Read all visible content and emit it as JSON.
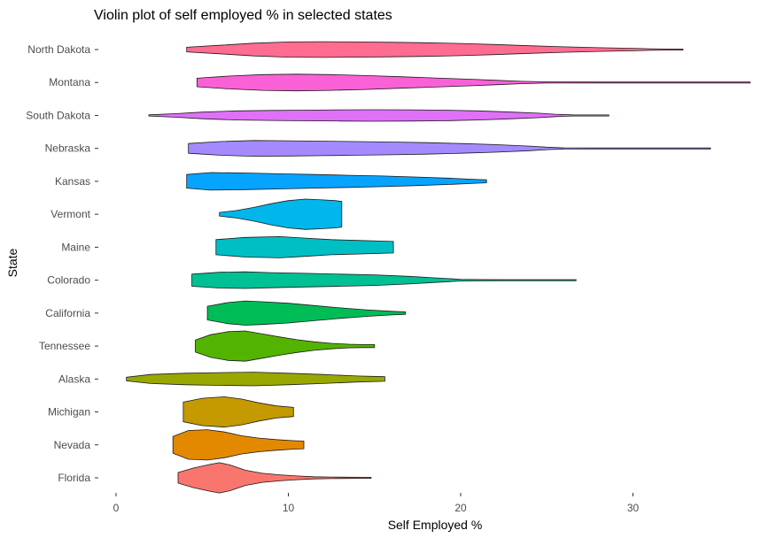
{
  "chart_data": {
    "type": "violin",
    "title": "Violin plot of self employed % in selected states",
    "xlabel": "Self Employed %",
    "ylabel": "State",
    "xlim": [
      -1,
      37
    ],
    "xticks": [
      0,
      10,
      20,
      30
    ],
    "grid": false,
    "legend": "none",
    "categories": [
      "Florida",
      "Nevada",
      "Michigan",
      "Alaska",
      "Tennessee",
      "California",
      "Colorado",
      "Maine",
      "Vermont",
      "Kansas",
      "Nebraska",
      "South Dakota",
      "Montana",
      "North Dakota"
    ],
    "series": [
      {
        "category": "Florida",
        "color": "#F8766D",
        "min": 3.6,
        "max": 14.8,
        "density": [
          [
            3.6,
            0.35
          ],
          [
            4.5,
            0.65
          ],
          [
            5.5,
            0.9
          ],
          [
            6.0,
            1.0
          ],
          [
            6.6,
            0.85
          ],
          [
            7.5,
            0.5
          ],
          [
            8.5,
            0.3
          ],
          [
            9.5,
            0.2
          ],
          [
            10.5,
            0.12
          ],
          [
            11.5,
            0.07
          ],
          [
            12.5,
            0.05
          ],
          [
            13.5,
            0.04
          ],
          [
            14.5,
            0.03
          ],
          [
            14.8,
            0.03
          ]
        ]
      },
      {
        "category": "Nevada",
        "color": "#E38900",
        "min": 3.3,
        "max": 10.9,
        "density": [
          [
            3.3,
            0.55
          ],
          [
            4.2,
            0.95
          ],
          [
            5.3,
            1.0
          ],
          [
            6.3,
            0.85
          ],
          [
            7.3,
            0.6
          ],
          [
            8.3,
            0.45
          ],
          [
            9.3,
            0.35
          ],
          [
            10.3,
            0.28
          ],
          [
            10.9,
            0.25
          ]
        ]
      },
      {
        "category": "Michigan",
        "color": "#C49A00",
        "min": 3.9,
        "max": 10.3,
        "density": [
          [
            3.9,
            0.65
          ],
          [
            5.0,
            0.9
          ],
          [
            6.3,
            1.0
          ],
          [
            7.3,
            0.85
          ],
          [
            8.3,
            0.6
          ],
          [
            9.3,
            0.4
          ],
          [
            10.3,
            0.3
          ]
        ]
      },
      {
        "category": "Alaska",
        "color": "#99A800",
        "min": 0.6,
        "max": 15.6,
        "density": [
          [
            0.6,
            0.12
          ],
          [
            2.0,
            0.3
          ],
          [
            4.0,
            0.38
          ],
          [
            6.0,
            0.42
          ],
          [
            8.0,
            0.45
          ],
          [
            10.0,
            0.38
          ],
          [
            12.0,
            0.3
          ],
          [
            14.0,
            0.2
          ],
          [
            15.6,
            0.15
          ]
        ]
      },
      {
        "category": "Tennessee",
        "color": "#53B400",
        "min": 4.6,
        "max": 15.0,
        "density": [
          [
            4.6,
            0.4
          ],
          [
            5.5,
            0.75
          ],
          [
            6.5,
            0.95
          ],
          [
            7.5,
            1.0
          ],
          [
            8.5,
            0.8
          ],
          [
            9.5,
            0.6
          ],
          [
            10.5,
            0.42
          ],
          [
            11.5,
            0.28
          ],
          [
            12.5,
            0.18
          ],
          [
            13.5,
            0.12
          ],
          [
            14.3,
            0.1
          ],
          [
            15.0,
            0.1
          ]
        ]
      },
      {
        "category": "California",
        "color": "#00BC56",
        "min": 5.3,
        "max": 16.8,
        "density": [
          [
            5.3,
            0.45
          ],
          [
            6.5,
            0.7
          ],
          [
            7.5,
            0.8
          ],
          [
            8.5,
            0.75
          ],
          [
            10.0,
            0.65
          ],
          [
            11.5,
            0.5
          ],
          [
            13.0,
            0.35
          ],
          [
            14.5,
            0.22
          ],
          [
            16.0,
            0.12
          ],
          [
            16.8,
            0.08
          ]
        ]
      },
      {
        "category": "Colorado",
        "color": "#00C094",
        "min": 4.4,
        "max": 26.7,
        "density": [
          [
            4.4,
            0.4
          ],
          [
            6.0,
            0.52
          ],
          [
            7.5,
            0.55
          ],
          [
            9.0,
            0.5
          ],
          [
            11.0,
            0.45
          ],
          [
            13.0,
            0.4
          ],
          [
            15.0,
            0.35
          ],
          [
            17.0,
            0.25
          ],
          [
            18.5,
            0.15
          ],
          [
            20.0,
            0.06
          ],
          [
            21.0,
            0.04
          ],
          [
            22.5,
            0.02
          ],
          [
            24.5,
            0.02
          ],
          [
            25.5,
            0.02
          ],
          [
            26.7,
            0.02
          ]
        ]
      },
      {
        "category": "Maine",
        "color": "#00BFC4",
        "min": 5.8,
        "max": 16.1,
        "density": [
          [
            5.8,
            0.5
          ],
          [
            7.5,
            0.65
          ],
          [
            9.5,
            0.7
          ],
          [
            11.0,
            0.6
          ],
          [
            12.5,
            0.5
          ],
          [
            14.0,
            0.45
          ],
          [
            15.5,
            0.4
          ],
          [
            16.1,
            0.38
          ]
        ]
      },
      {
        "category": "Vermont",
        "color": "#00B6EB",
        "min": 6.0,
        "max": 13.1,
        "density": [
          [
            6.0,
            0.12
          ],
          [
            7.0,
            0.25
          ],
          [
            8.0,
            0.45
          ],
          [
            9.0,
            0.7
          ],
          [
            10.0,
            0.9
          ],
          [
            11.0,
            1.0
          ],
          [
            12.0,
            0.95
          ],
          [
            12.7,
            0.9
          ],
          [
            13.1,
            0.85
          ]
        ]
      },
      {
        "category": "Kansas",
        "color": "#06A4FF",
        "min": 4.1,
        "max": 21.5,
        "density": [
          [
            4.1,
            0.45
          ],
          [
            5.5,
            0.58
          ],
          [
            7.5,
            0.55
          ],
          [
            9.5,
            0.5
          ],
          [
            11.5,
            0.45
          ],
          [
            13.5,
            0.4
          ],
          [
            15.5,
            0.35
          ],
          [
            17.5,
            0.28
          ],
          [
            19.5,
            0.2
          ],
          [
            21.0,
            0.12
          ],
          [
            21.5,
            0.1
          ]
        ]
      },
      {
        "category": "Nebraska",
        "color": "#A58AFF",
        "min": 4.2,
        "max": 34.5,
        "density": [
          [
            4.2,
            0.32
          ],
          [
            6.0,
            0.45
          ],
          [
            8.0,
            0.52
          ],
          [
            10.0,
            0.5
          ],
          [
            12.0,
            0.48
          ],
          [
            14.0,
            0.45
          ],
          [
            16.0,
            0.42
          ],
          [
            18.0,
            0.38
          ],
          [
            20.0,
            0.32
          ],
          [
            22.0,
            0.25
          ],
          [
            24.0,
            0.15
          ],
          [
            25.0,
            0.08
          ],
          [
            26.0,
            0.04
          ],
          [
            28.0,
            0.03
          ],
          [
            31.0,
            0.03
          ],
          [
            34.5,
            0.03
          ]
        ]
      },
      {
        "category": "South Dakota",
        "color": "#DF70F8",
        "min": 1.9,
        "max": 28.6,
        "density": [
          [
            1.9,
            0.04
          ],
          [
            3.5,
            0.12
          ],
          [
            5.0,
            0.22
          ],
          [
            7.0,
            0.3
          ],
          [
            9.0,
            0.33
          ],
          [
            11.0,
            0.35
          ],
          [
            13.0,
            0.37
          ],
          [
            15.0,
            0.38
          ],
          [
            17.0,
            0.37
          ],
          [
            19.0,
            0.35
          ],
          [
            21.0,
            0.3
          ],
          [
            23.0,
            0.22
          ],
          [
            24.5,
            0.15
          ],
          [
            25.5,
            0.08
          ],
          [
            26.5,
            0.04
          ],
          [
            28.6,
            0.03
          ]
        ]
      },
      {
        "category": "Montana",
        "color": "#FB61D7",
        "min": 4.7,
        "max": 36.8,
        "density": [
          [
            4.7,
            0.28
          ],
          [
            6.5,
            0.42
          ],
          [
            8.5,
            0.52
          ],
          [
            10.5,
            0.55
          ],
          [
            12.5,
            0.52
          ],
          [
            14.5,
            0.46
          ],
          [
            16.5,
            0.38
          ],
          [
            18.5,
            0.3
          ],
          [
            20.5,
            0.22
          ],
          [
            22.0,
            0.15
          ],
          [
            23.5,
            0.08
          ],
          [
            25.0,
            0.04
          ],
          [
            28.0,
            0.03
          ],
          [
            31.0,
            0.03
          ],
          [
            34.0,
            0.03
          ],
          [
            36.8,
            0.02
          ]
        ]
      },
      {
        "category": "North Dakota",
        "color": "#FF6C91",
        "min": 4.1,
        "max": 32.9,
        "density": [
          [
            4.1,
            0.15
          ],
          [
            6.0,
            0.28
          ],
          [
            8.0,
            0.42
          ],
          [
            10.0,
            0.5
          ],
          [
            12.0,
            0.52
          ],
          [
            14.0,
            0.5
          ],
          [
            16.0,
            0.48
          ],
          [
            18.0,
            0.45
          ],
          [
            20.0,
            0.4
          ],
          [
            22.0,
            0.33
          ],
          [
            24.0,
            0.25
          ],
          [
            26.0,
            0.18
          ],
          [
            28.0,
            0.12
          ],
          [
            30.0,
            0.08
          ],
          [
            31.0,
            0.05
          ],
          [
            32.0,
            0.03
          ],
          [
            32.9,
            0.02
          ]
        ]
      }
    ]
  }
}
